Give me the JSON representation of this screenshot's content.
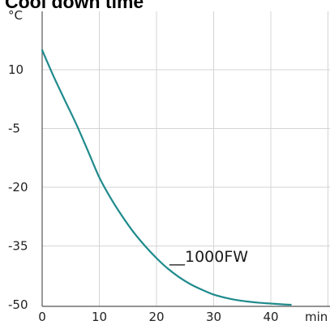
{
  "chart_data": {
    "type": "line",
    "title": "Cool down time",
    "xlabel": "min",
    "ylabel": "°C",
    "xlim": [
      0,
      50
    ],
    "ylim": [
      -50,
      20
    ],
    "x_ticks": [
      0,
      10,
      20,
      30,
      40
    ],
    "x_tick_labels": [
      "0",
      "10",
      "20",
      "30",
      "40"
    ],
    "y_ticks": [
      -50,
      -35,
      -20,
      -5,
      10
    ],
    "y_tick_labels": [
      "-50",
      "-35",
      "-20",
      "-5",
      "10"
    ],
    "grid": true,
    "series_color": "#1f8a8c",
    "series": [
      {
        "name": "1000FW",
        "x": [
          0,
          2,
          4,
          6,
          8,
          10,
          12,
          14,
          16,
          18,
          20,
          22,
          24,
          26,
          28,
          30,
          32,
          34,
          36,
          38,
          40,
          42,
          43.5
        ],
        "y": [
          15,
          8.3,
          2.1,
          -4,
          -10.7,
          -17.5,
          -22.8,
          -27.4,
          -31.5,
          -35,
          -38.1,
          -40.8,
          -43,
          -44.8,
          -46.2,
          -47.4,
          -48.2,
          -48.8,
          -49.2,
          -49.5,
          -49.7,
          -49.9,
          -50
        ]
      }
    ],
    "annotation": "__1000FW"
  }
}
